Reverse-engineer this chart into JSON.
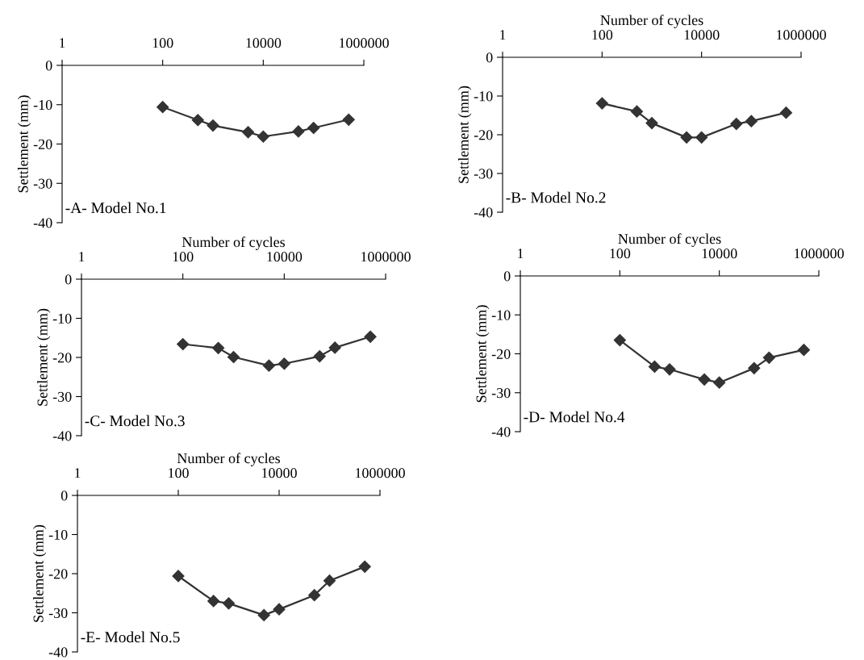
{
  "chart_data": [
    {
      "type": "line",
      "ylabel": "Settlement (mm)",
      "annotations": [
        "-A- Model No.1"
      ],
      "log": "x",
      "marker": "diamond",
      "line_style": "solid",
      "grid": false,
      "xlim": [
        1,
        1000000
      ],
      "xticks": [
        1,
        100,
        10000,
        1000000
      ],
      "ylim": [
        -40,
        0
      ],
      "yticks": [
        0,
        -10,
        -20,
        -30,
        -40
      ],
      "x": [
        100,
        500,
        1000,
        5000,
        10000,
        50000,
        100000,
        500000
      ],
      "series": [
        {
          "color": "#333333",
          "values": [
            -10.6,
            -13.9,
            -15.3,
            -17.0,
            -18.1,
            -16.8,
            -15.9,
            -13.8
          ]
        }
      ]
    },
    {
      "type": "line",
      "xlabel": "Number of cycles",
      "ylabel": "Settlement (mm)",
      "annotations": [
        "-B- Model No.2"
      ],
      "log": "x",
      "marker": "diamond",
      "line_style": "solid",
      "grid": false,
      "xlim": [
        1,
        1000000
      ],
      "xticks": [
        1,
        100,
        10000,
        1000000
      ],
      "ylim": [
        -40,
        0
      ],
      "yticks": [
        0,
        -10,
        -20,
        -30,
        -40
      ],
      "x": [
        100,
        500,
        1000,
        5000,
        10000,
        50000,
        100000,
        500000
      ],
      "series": [
        {
          "color": "#333333",
          "values": [
            -11.9,
            -14.0,
            -17.0,
            -20.7,
            -20.7,
            -17.2,
            -16.5,
            -14.3
          ]
        }
      ]
    },
    {
      "type": "line",
      "xlabel": "Number of cycles",
      "ylabel": "Settlement (mm)",
      "annotations": [
        "-C- Model No.3"
      ],
      "log": "x",
      "marker": "diamond",
      "line_style": "solid",
      "grid": false,
      "xlim": [
        1,
        1000000
      ],
      "xticks": [
        1,
        100,
        10000,
        1000000
      ],
      "ylim": [
        -40,
        0
      ],
      "yticks": [
        0,
        -10,
        -20,
        -30,
        -40
      ],
      "x": [
        100,
        500,
        1000,
        5000,
        10000,
        50000,
        100000,
        500000
      ],
      "series": [
        {
          "color": "#333333",
          "values": [
            -16.6,
            -17.6,
            -19.9,
            -22.1,
            -21.6,
            -19.7,
            -17.5,
            -14.7
          ]
        }
      ]
    },
    {
      "type": "line",
      "xlabel": "Number of cycles",
      "ylabel": "Settlement (mm)",
      "annotations": [
        "-D- Model No.4"
      ],
      "log": "x",
      "marker": "diamond",
      "line_style": "solid",
      "grid": false,
      "xlim": [
        1,
        1000000
      ],
      "xticks": [
        1,
        100,
        10000,
        1000000
      ],
      "ylim": [
        -40,
        0
      ],
      "yticks": [
        0,
        -10,
        -20,
        -30,
        -40
      ],
      "x": [
        100,
        500,
        1000,
        5000,
        10000,
        50000,
        100000,
        500000
      ],
      "series": [
        {
          "color": "#333333",
          "values": [
            -16.5,
            -23.3,
            -24.0,
            -26.6,
            -27.4,
            -23.7,
            -21.0,
            -19.0
          ]
        }
      ]
    },
    {
      "type": "line",
      "xlabel": "Number of cycles",
      "ylabel": "Settlement (mm)",
      "annotations": [
        "-E- Model No.5"
      ],
      "log": "x",
      "marker": "diamond",
      "line_style": "solid",
      "grid": false,
      "xlim": [
        1,
        1000000
      ],
      "xticks": [
        1,
        100,
        10000,
        1000000
      ],
      "ylim": [
        -40,
        0
      ],
      "yticks": [
        0,
        -10,
        -20,
        -30,
        -40
      ],
      "x": [
        100,
        500,
        1000,
        5000,
        10000,
        50000,
        100000,
        500000
      ],
      "series": [
        {
          "color": "#333333",
          "values": [
            -20.6,
            -27.0,
            -27.6,
            -30.6,
            -29.1,
            -25.5,
            -21.8,
            -18.2
          ]
        }
      ]
    }
  ]
}
